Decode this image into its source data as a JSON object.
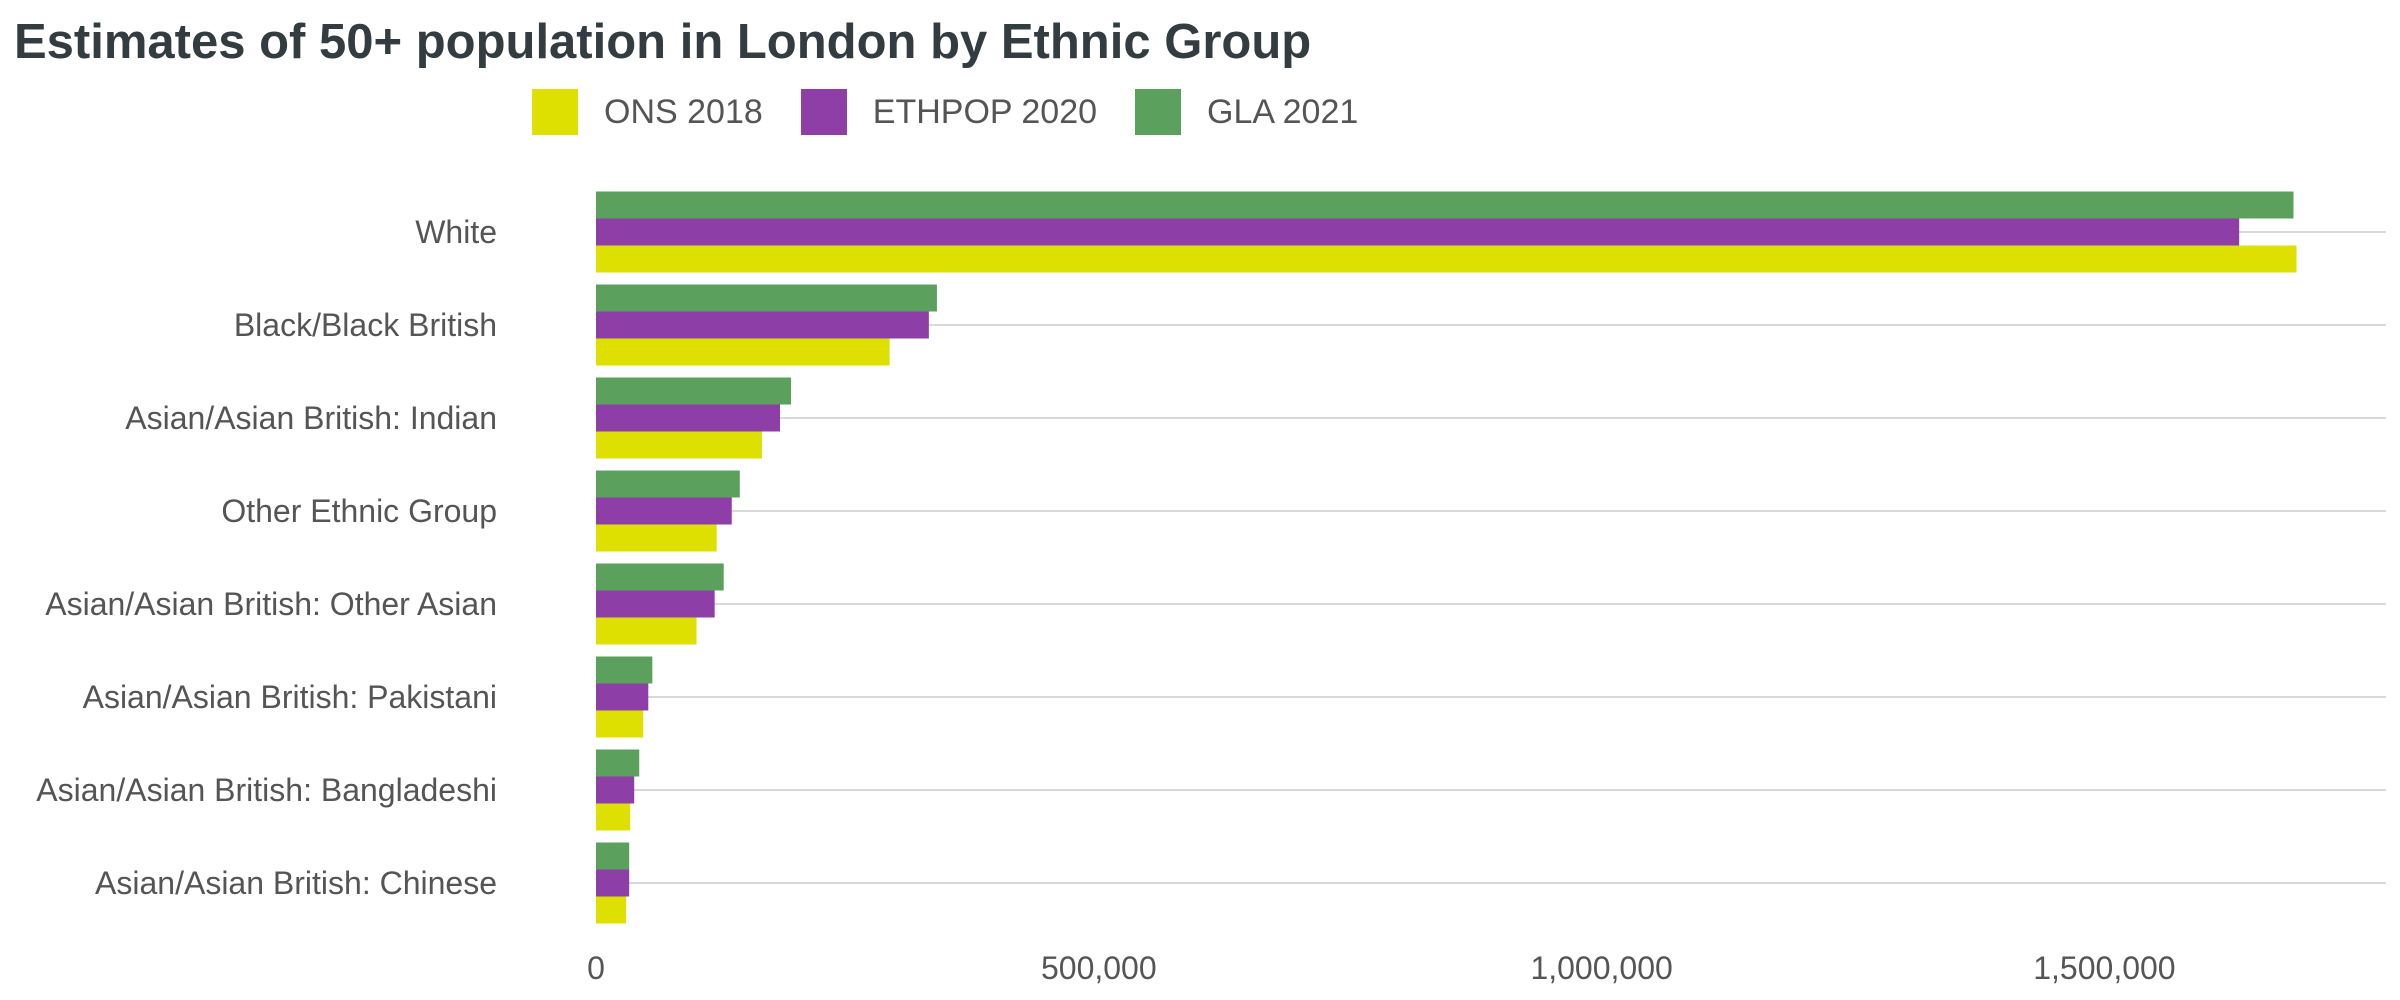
{
  "chart_data": {
    "type": "bar",
    "orientation": "horizontal",
    "title": "Estimates of 50+ population in London by Ethnic Group",
    "xlabel": "",
    "ylabel": "",
    "xlim": [
      0,
      1780000
    ],
    "x_ticks": [
      0,
      500000,
      1000000,
      1500000
    ],
    "x_tick_labels": [
      "0",
      "500,000",
      "1,000,000",
      "1,500,000"
    ],
    "grid": "horizontal major lines at each category",
    "legend_position": "top",
    "categories": [
      "White",
      "Black/Black British",
      "Asian/Asian British: Indian",
      "Other Ethnic Group",
      "Asian/Asian British: Other Asian",
      "Asian/Asian British: Pakistani",
      "Asian/Asian British: Bangladeshi",
      "Asian/Asian British: Chinese"
    ],
    "series": [
      {
        "name": "ONS 2018",
        "color": "#dde000",
        "values": [
          1691000,
          292000,
          165000,
          120000,
          100000,
          47000,
          34000,
          30000
        ]
      },
      {
        "name": "ETHPOP 2020",
        "color": "#8e3fa7",
        "values": [
          1634000,
          331000,
          183000,
          135000,
          118000,
          52000,
          38000,
          33000
        ]
      },
      {
        "name": "GLA 2021",
        "color": "#5ba05c",
        "values": [
          1688000,
          339000,
          194000,
          143000,
          127000,
          56000,
          43000,
          33000
        ]
      }
    ]
  }
}
